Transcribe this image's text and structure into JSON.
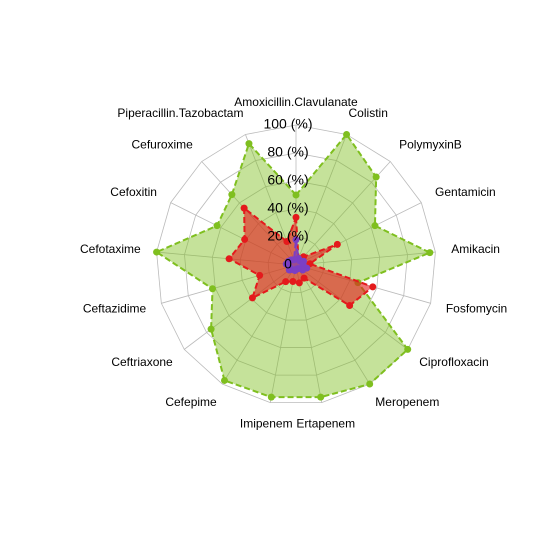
{
  "chart_data": {
    "type": "radar",
    "categories": [
      "Amoxicillin.Clavulanate",
      "Colistin",
      "PolymyxinB",
      "Gentamicin",
      "Amikacin",
      "Fosfomycin",
      "Ciprofloxacin",
      "Meropenem",
      "Ertapenem",
      "Imipenem",
      "Cefepime",
      "Ceftriaxone",
      "Ceftazidime",
      "Cefotaxime",
      "Cefoxitin",
      "Cefuroxime",
      "Piperacillin.Tazobactam"
    ],
    "series": [
      {
        "color": "#7fbf1f",
        "values": [
          50,
          100,
          85,
          63,
          96,
          46,
          100,
          100,
          96,
          96,
          97,
          76,
          62,
          100,
          63,
          68,
          93
        ]
      },
      {
        "color": "#e41a1c",
        "values": [
          34,
          5,
          8,
          33,
          10,
          57,
          48,
          11,
          13,
          12,
          14,
          39,
          27,
          48,
          41,
          55,
          18
        ]
      },
      {
        "color": "#7b3fc4",
        "values": [
          18,
          5,
          4,
          6,
          5,
          8,
          6,
          3,
          3,
          4,
          4,
          6,
          5,
          7,
          6,
          5,
          4
        ]
      }
    ],
    "ylim": [
      0,
      100
    ],
    "yticks": [
      {
        "value": 0,
        "label": "0"
      },
      {
        "value": 20,
        "label": "20 (%)"
      },
      {
        "value": 40,
        "label": "40 (%)"
      },
      {
        "value": 60,
        "label": "60 (%)"
      },
      {
        "value": 80,
        "label": "80 (%)"
      },
      {
        "value": 100,
        "label": "100 (%)"
      }
    ],
    "grid": true
  }
}
